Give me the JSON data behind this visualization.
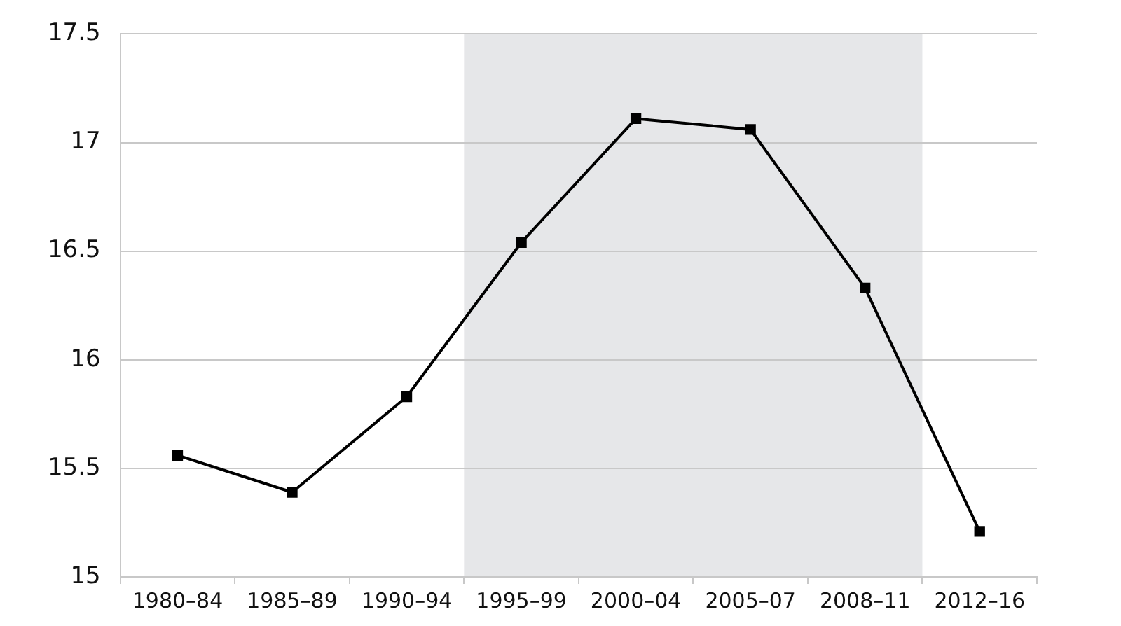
{
  "chart_data": {
    "type": "line",
    "categories": [
      "1980–84",
      "1985–89",
      "1990–94",
      "1995–99",
      "2000–04",
      "2005–07",
      "2008–11",
      "2012–16"
    ],
    "series": [
      {
        "color": "#000000",
        "values": [
          15.56,
          15.39,
          15.83,
          16.54,
          17.11,
          17.06,
          16.33,
          15.21
        ]
      }
    ],
    "ylim": [
      15,
      17.5
    ],
    "yticks": [
      15,
      15.5,
      16,
      16.5,
      17,
      17.5
    ],
    "grid": "y",
    "legend": false,
    "marker": "square",
    "line_style": "solid",
    "bands": [
      {
        "axis": "x",
        "from": "1995–99",
        "to": "2008–11",
        "color": "#e6e7e9"
      }
    ]
  }
}
